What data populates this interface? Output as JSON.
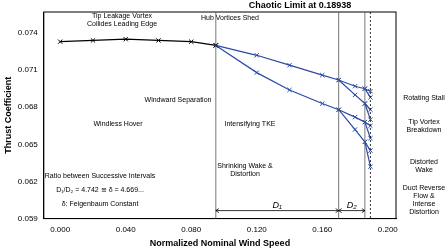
{
  "chart_data": {
    "type": "line",
    "title": "Chaotic Limit at 0.18938",
    "x_label": "Normalized Nominal Wind Speed",
    "y_label": "Thrust Coefficient",
    "xlim": [
      -0.01,
      0.205
    ],
    "xticks": [
      {
        "value": 0,
        "label": "0.000"
      },
      {
        "value": 0.04,
        "label": "0.040"
      },
      {
        "value": 0.08,
        "label": "0.080"
      },
      {
        "value": 0.12,
        "label": "0.120"
      },
      {
        "value": 0.16,
        "label": "0.160"
      },
      {
        "value": 0.2,
        "label": "0.200"
      }
    ],
    "ylim": [
      0.059,
      0.0757
    ],
    "yticks": [
      0.059,
      0.062,
      0.065,
      0.068,
      0.071,
      0.074
    ],
    "grid": false,
    "marker": "x",
    "series": [
      {
        "color": "#000000",
        "x": [
          0,
          0.02,
          0.04,
          0.06,
          0.08,
          0.095
        ],
        "values": [
          0.0733,
          0.0734,
          0.0735,
          0.0734,
          0.0733,
          0.073
        ]
      },
      {
        "color": "#2b4aa8",
        "x": [
          0.095,
          0.12,
          0.14,
          0.16,
          0.17,
          0.18,
          0.186,
          0.1894
        ],
        "values": [
          0.073,
          0.0722,
          0.0714,
          0.0706,
          0.0702,
          0.0697,
          0.0695,
          0.0693
        ]
      },
      {
        "color": "#2b4aa8",
        "x": [
          0.17,
          0.18,
          0.186,
          0.1894
        ],
        "values": [
          0.0702,
          0.069,
          0.0683,
          0.0678
        ]
      },
      {
        "color": "#2b4aa8",
        "x": [
          0.095,
          0.12,
          0.14,
          0.16,
          0.17,
          0.18,
          0.186,
          0.1894
        ],
        "values": [
          0.073,
          0.0708,
          0.0694,
          0.0683,
          0.0678,
          0.0672,
          0.0668,
          0.0665
        ]
      },
      {
        "color": "#2b4aa8",
        "x": [
          0.17,
          0.18,
          0.186,
          0.1894
        ],
        "values": [
          0.0678,
          0.0662,
          0.0652,
          0.0645
        ]
      },
      {
        "color": "#2b4aa8",
        "x": [
          0.186,
          0.1894
        ],
        "values": [
          0.0695,
          0.0688
        ]
      },
      {
        "color": "#2b4aa8",
        "x": [
          0.186,
          0.1894
        ],
        "values": [
          0.0683,
          0.067
        ]
      },
      {
        "color": "#2b4aa8",
        "x": [
          0.186,
          0.1894
        ],
        "values": [
          0.0668,
          0.0655
        ]
      },
      {
        "color": "#2b4aa8",
        "x": [
          0.186,
          0.1894
        ],
        "values": [
          0.0652,
          0.0632
        ]
      }
    ],
    "vlines": [
      0.095,
      0.17,
      0.186
    ],
    "chaotic_limit": 0.18938,
    "intervals": [
      {
        "label": "D₁",
        "from": 0.095,
        "to": 0.17
      },
      {
        "label": "D₂",
        "from": 0.17,
        "to": 0.186
      }
    ],
    "annotations": [
      "Windless Hover",
      "Tip Leakage Vortex Collides Leading Edge",
      "Hub Vortices Shed",
      "Windward Separation",
      "Intensifying TKE",
      "Shrinking Wake & Distortion",
      "Rotating Stall",
      "Tip Vortex Breakdown",
      "Distorted Wake",
      "Duct Reverse Flow & Intense Distortion",
      "Ratio between Successive Intervals",
      "D₁/D₂ = 4.742 ≅ δ = 4.669...",
      "δ: Feigenbaum Constant"
    ]
  }
}
